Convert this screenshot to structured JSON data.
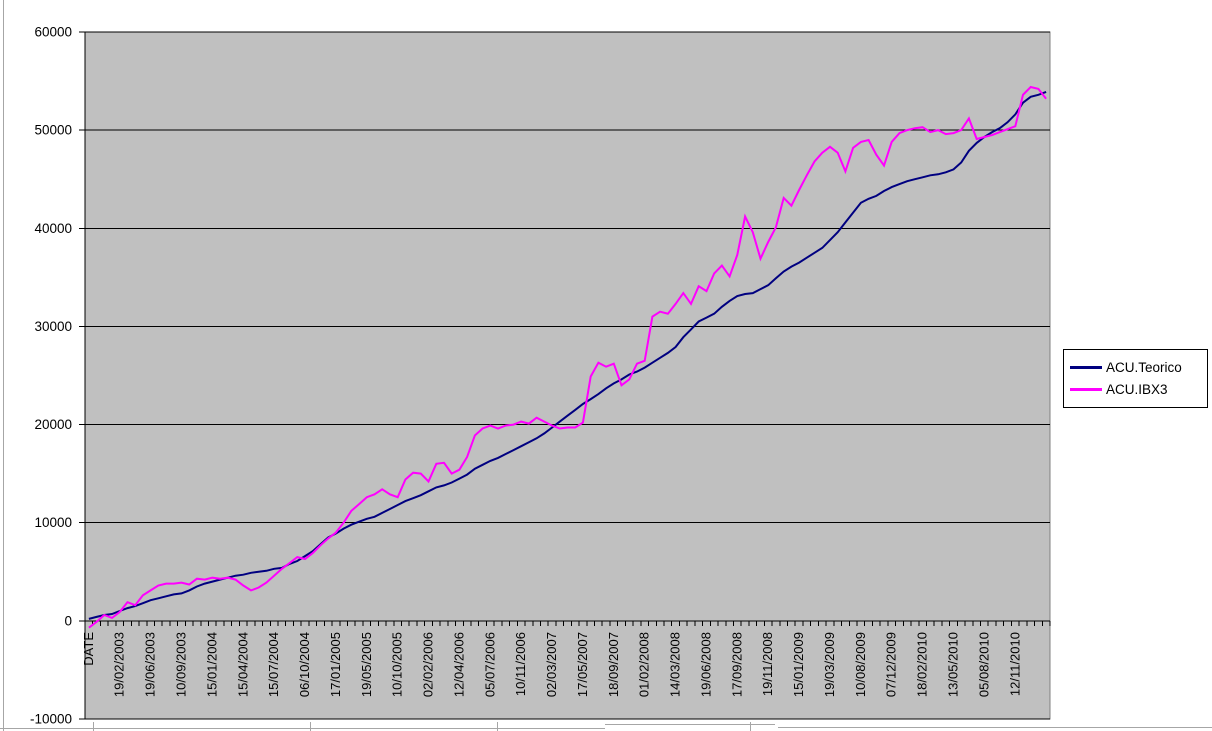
{
  "chart_data": {
    "type": "line",
    "title": "",
    "xlabel": "",
    "ylabel": "",
    "x_header_label": "DATE",
    "categories": [
      "DATE",
      "19/02/2003",
      "19/06/2003",
      "10/09/2003",
      "15/01/2004",
      "15/04/2004",
      "15/07/2004",
      "06/10/2004",
      "17/01/2005",
      "19/05/2005",
      "10/10/2005",
      "02/02/2006",
      "12/04/2006",
      "05/07/2006",
      "10/11/2006",
      "02/03/2007",
      "17/05/2007",
      "18/09/2007",
      "01/02/2008",
      "14/03/2008",
      "19/06/2008",
      "17/09/2008",
      "19/11/2008",
      "15/01/2009",
      "19/03/2009",
      "10/08/2009",
      "07/12/2009",
      "18/02/2010",
      "13/05/2010",
      "05/08/2010",
      "12/11/2010"
    ],
    "label_every_n_points": 4,
    "y_tick_labels": [
      "60000",
      "50000",
      "40000",
      "30000",
      "20000",
      "10000",
      "0",
      "-10000"
    ],
    "ylim": [
      -10000,
      60000
    ],
    "grid": "horizontal",
    "legend_position": "right",
    "plot_bg": "#c0c0c0",
    "axis_color": "#000000",
    "plot_border_color": "#808080",
    "sheet_line_color": "#a6a6a6",
    "series": [
      {
        "name": "ACU.Teorico",
        "color": "#000080",
        "values": [
          200,
          400,
          600,
          700,
          1000,
          1300,
          1500,
          1800,
          2100,
          2300,
          2500,
          2700,
          2800,
          3100,
          3500,
          3800,
          4000,
          4200,
          4400,
          4600,
          4700,
          4900,
          5000,
          5100,
          5300,
          5400,
          5800,
          6100,
          6600,
          7100,
          7800,
          8500,
          8900,
          9400,
          9800,
          10100,
          10400,
          10600,
          11000,
          11400,
          11800,
          12200,
          12500,
          12800,
          13200,
          13600,
          13800,
          14100,
          14500,
          14900,
          15500,
          15900,
          16300,
          16600,
          17000,
          17400,
          17800,
          18200,
          18600,
          19100,
          19700,
          20300,
          20900,
          21500,
          22100,
          22600,
          23100,
          23700,
          24200,
          24600,
          25100,
          25400,
          25800,
          26300,
          26800,
          27300,
          27900,
          28900,
          29700,
          30500,
          30900,
          31300,
          32000,
          32600,
          33100,
          33300,
          33400,
          33800,
          34200,
          34900,
          35600,
          36100,
          36500,
          37000,
          37500,
          38000,
          38800,
          39600,
          40600,
          41600,
          42600,
          43000,
          43300,
          43800,
          44200,
          44500,
          44800,
          45000,
          45200,
          45400,
          45500,
          45700,
          46000,
          46700,
          47900,
          48700,
          49300,
          49800,
          50200,
          50800,
          51600,
          52800,
          53400,
          53600,
          53900
        ]
      },
      {
        "name": "ACU.IBX3",
        "color": "#ff00ff",
        "values": [
          -700,
          -100,
          600,
          300,
          900,
          1900,
          1600,
          2600,
          3100,
          3600,
          3800,
          3800,
          3900,
          3700,
          4300,
          4200,
          4400,
          4300,
          4400,
          4200,
          3600,
          3100,
          3400,
          3900,
          4600,
          5300,
          5900,
          6500,
          6300,
          6900,
          7700,
          8400,
          9000,
          10000,
          11200,
          11900,
          12600,
          12900,
          13400,
          12900,
          12600,
          14400,
          15100,
          15000,
          14200,
          16000,
          16100,
          15000,
          15400,
          16700,
          18900,
          19600,
          19900,
          19600,
          19900,
          20000,
          20300,
          20100,
          20700,
          20300,
          19900,
          19600,
          19700,
          19700,
          20200,
          24900,
          26300,
          25900,
          26200,
          24000,
          24600,
          26200,
          26500,
          31000,
          31500,
          31300,
          32300,
          33400,
          32300,
          34100,
          33600,
          35400,
          36200,
          35100,
          37300,
          41200,
          39600,
          36900,
          38600,
          40100,
          43100,
          42300,
          43900,
          45400,
          46800,
          47700,
          48300,
          47700,
          45800,
          48200,
          48800,
          49000,
          47500,
          46400,
          48800,
          49700,
          50000,
          50200,
          50300,
          49800,
          50000,
          49600,
          49700,
          50000,
          51200,
          49100,
          49300,
          49500,
          49800,
          50100,
          50400,
          53600,
          54400,
          54200,
          53200
        ]
      }
    ]
  },
  "legend": {
    "items": [
      {
        "label": "ACU.Teorico",
        "color": "#000080"
      },
      {
        "label": "ACU.IBX3",
        "color": "#ff00ff"
      }
    ]
  }
}
